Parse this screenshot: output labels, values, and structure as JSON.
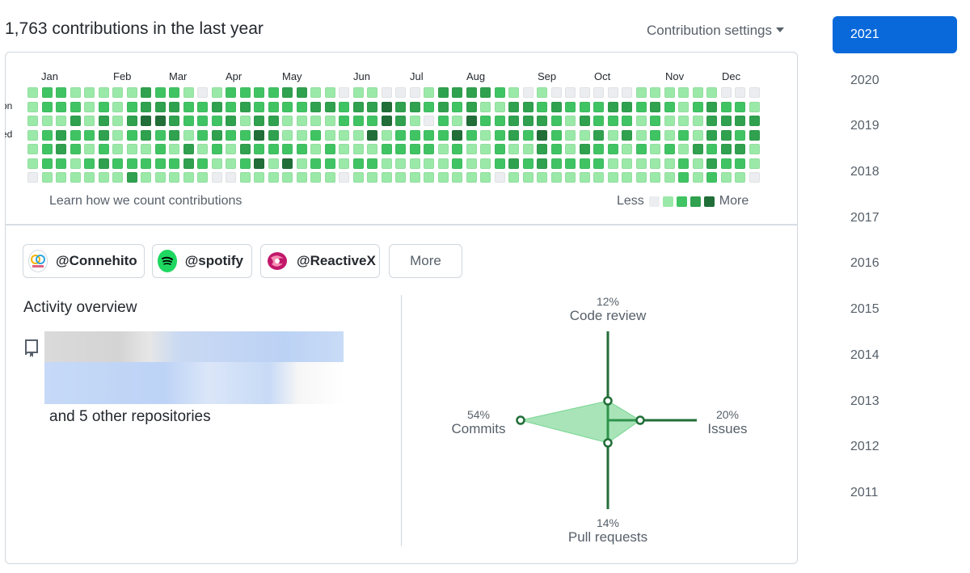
{
  "header": {
    "title": "1,763 contributions in the last year",
    "settings_label": "Contribution settings"
  },
  "calendar": {
    "months": [
      "Jan",
      "Feb",
      "Mar",
      "Apr",
      "May",
      "Jun",
      "Jul",
      "Aug",
      "Sep",
      "Oct",
      "Nov",
      "Dec"
    ],
    "day_labels": [
      "on",
      "ed"
    ],
    "level_colors": [
      "#ebedf0",
      "#9be9a8",
      "#40c463",
      "#30a14e",
      "#216e39"
    ],
    "levels": [
      "1221111132210122223311011000133332101000000111111000",
      "1222121233322323222233233433232311332322233232123221",
      "1113131344322231331111222431021422333213222121113333",
      "1232231232312322431121114122224212324211313121213323",
      "1232121112131213222212111222212112113213221212132331",
      "1221232222232112414122122111112112323222211111213221",
      "0111111311111001111111011111111110111111111111212110"
    ],
    "learn_link": "Learn how we count contributions",
    "legend_less": "Less",
    "legend_more": "More"
  },
  "organizations": [
    {
      "name": "@Connehito",
      "logo_icon": "connehito-logo-icon"
    },
    {
      "name": "@spotify",
      "logo_icon": "spotify-logo-icon"
    },
    {
      "name": "@ReactiveX",
      "logo_icon": "reactivex-logo-icon"
    }
  ],
  "more_label": "More",
  "activity": {
    "title": "Activity overview",
    "other_repos": "and 5 other repositories",
    "radar": {
      "code_review": {
        "pct": "12%",
        "label": "Code review",
        "value": 12
      },
      "commits": {
        "pct": "54%",
        "label": "Commits",
        "value": 54
      },
      "issues": {
        "pct": "20%",
        "label": "Issues",
        "value": 20
      },
      "pull_requests": {
        "pct": "14%",
        "label": "Pull requests",
        "value": 14
      },
      "axis_color": "#216e39",
      "fill_color": "#40c463"
    }
  },
  "years": [
    "2021",
    "2020",
    "2019",
    "2018",
    "2017",
    "2016",
    "2015",
    "2014",
    "2013",
    "2012",
    "2011"
  ],
  "selected_year": "2021"
}
